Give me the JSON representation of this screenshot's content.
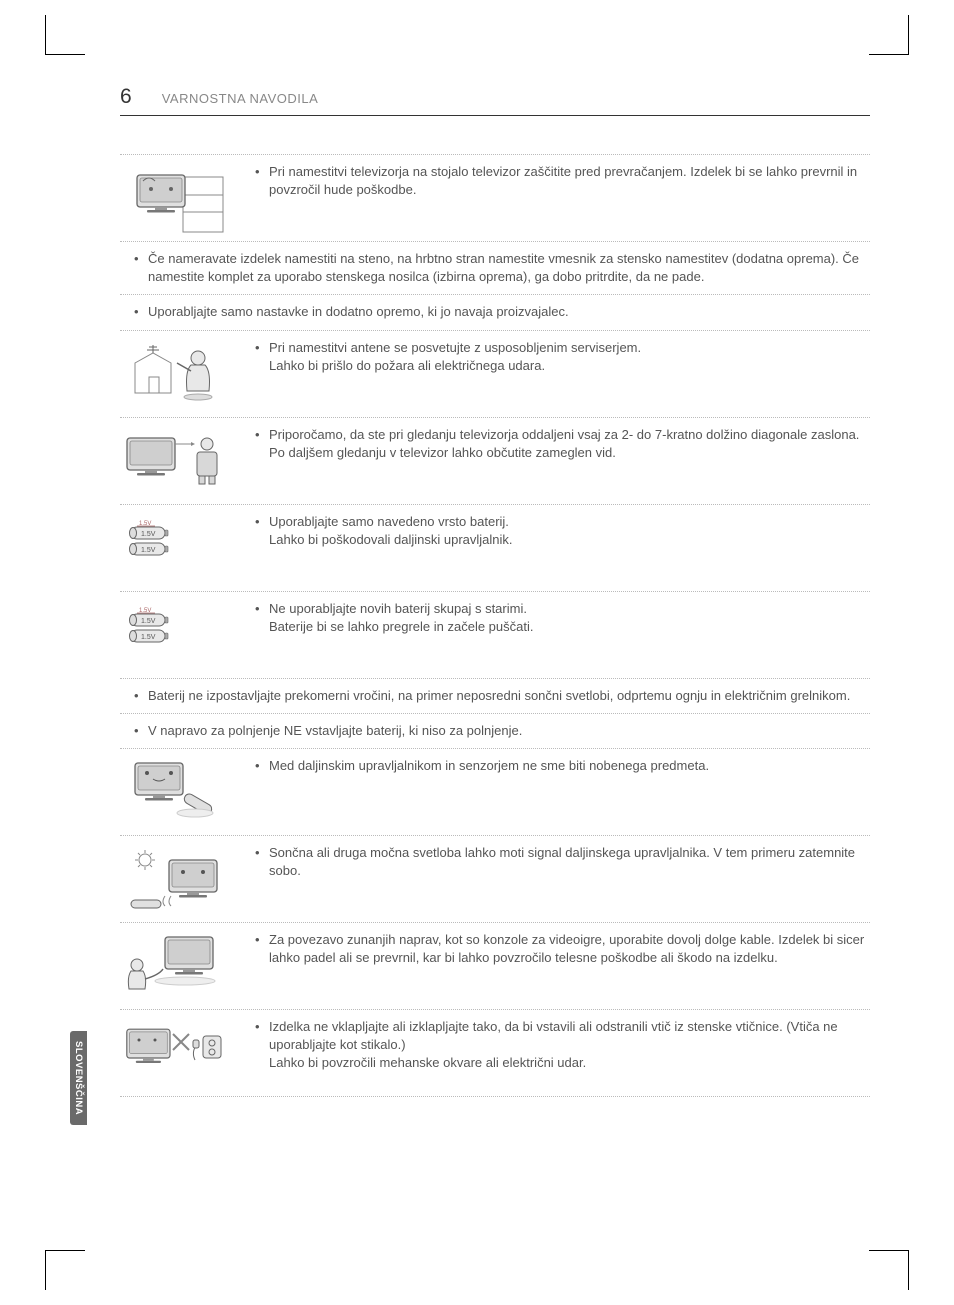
{
  "page_number": "6",
  "header_title": "VARNOSTNA NAVODILA",
  "side_tab": "SLOVENŠČINA",
  "battery_label": "1.5V",
  "colors": {
    "text": "#555555",
    "header_text": "#888888",
    "border": "#bbbbbb",
    "illo_stroke": "#666666",
    "illo_fill": "#d8d8d8",
    "tab_bg": "#6a6a6a"
  },
  "items": [
    {
      "type": "img",
      "illo": "tv-stand",
      "text": "Pri namestitvi televizorja na stojalo televizor zaščitite pred prevračanjem. Izdelek bi se lahko prevrnil in povzročil hude poškodbe."
    },
    {
      "type": "noimg",
      "text": "Če nameravate izdelek namestiti na steno, na hrbtno stran namestite vmesnik za stensko namestitev (dodatna oprema). Če namestite komplet za uporabo stenskega nosilca (izbirna oprema), ga dobo pritrdite, da ne pade."
    },
    {
      "type": "noimg",
      "text": "Uporabljajte samo nastavke in dodatno opremo, ki jo navaja proizvajalec."
    },
    {
      "type": "img",
      "illo": "antenna-person",
      "text": "Pri namestitvi antene se posvetujte z usposobljenim serviserjem.\nLahko bi prišlo do požara ali električnega udara."
    },
    {
      "type": "img",
      "illo": "tv-distance",
      "text": "Priporočamo, da ste pri gledanju televizorja oddaljeni vsaj za 2- do 7-kratno dolžino diagonale zaslona.\nPo daljšem gledanju v televizor lahko občutite zameglen vid."
    },
    {
      "type": "img",
      "illo": "batteries-plain",
      "text": "Uporabljajte samo navedeno vrsto baterij.\nLahko bi poškodovali daljinski upravljalnik."
    },
    {
      "type": "img",
      "illo": "batteries-plain",
      "text": "Ne uporabljajte novih baterij skupaj s starimi.\nBaterije bi se lahko pregrele in začele puščati."
    },
    {
      "type": "noimg",
      "text": "Baterij ne izpostavljajte prekomerni vročini, na primer neposredni sončni svetlobi, odprtemu ognju in električnim grelnikom."
    },
    {
      "type": "noimg",
      "text": "V napravo za polnjenje NE vstavljajte baterij, ki niso za polnjenje."
    },
    {
      "type": "img",
      "illo": "tv-remote",
      "text": "Med daljinskim upravljalnikom in senzorjem ne sme biti nobenega predmeta."
    },
    {
      "type": "img",
      "illo": "tv-sun",
      "text": "Sončna ali druga močna svetloba lahko moti signal daljinskega upravljalnika. V tem primeru zatemnite sobo."
    },
    {
      "type": "img",
      "illo": "tv-cable",
      "text": "Za povezavo zunanjih naprav, kot so konzole za videoigre, uporabite dovolj dolge kable. Izdelek bi sicer lahko padel ali se prevrnil, kar bi lahko povzročilo telesne poškodbe ali škodo na izdelku."
    },
    {
      "type": "img",
      "illo": "tv-plug",
      "text": "Izdelka ne vklapljajte ali izklapljajte tako, da bi vstavili ali odstranili vtič iz stenske vtičnice. (Vtiča ne uporabljajte kot stikalo.)\nLahko bi povzročili mehanske okvare ali električni udar."
    }
  ]
}
